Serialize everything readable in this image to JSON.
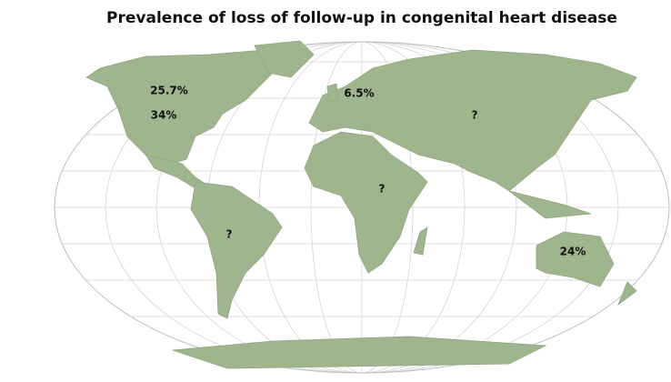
{
  "title": "Prevalence of loss of follow-up in congenital heart disease",
  "labels": [
    "25.7%",
    "34%",
    "6.5%",
    "?",
    "?",
    "?",
    "24%"
  ]
}
